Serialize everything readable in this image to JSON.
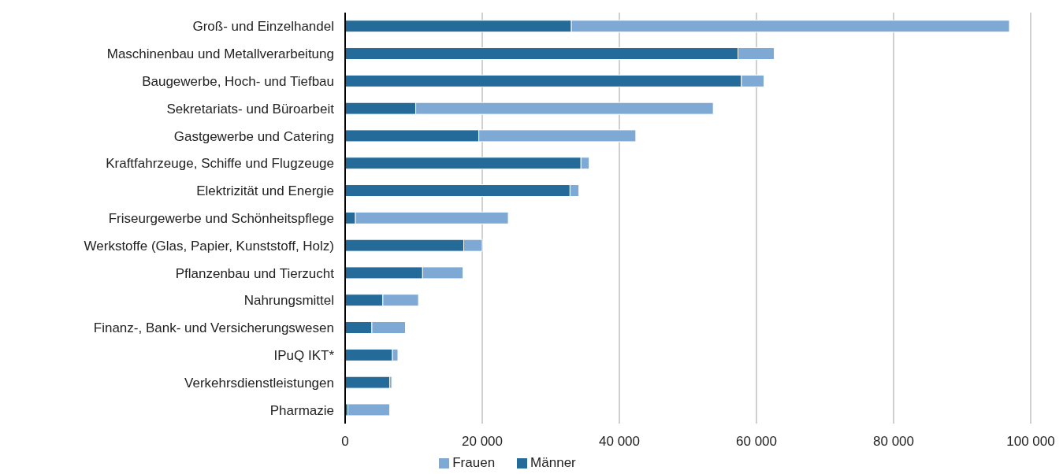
{
  "chart_data": {
    "type": "bar",
    "orientation": "horizontal",
    "stacked": true,
    "categories": [
      "Groß- und Einzelhandel",
      "Maschinenbau und Metallverarbeitung",
      "Baugewerbe, Hoch- und Tiefbau",
      "Sekretariats- und Büroarbeit",
      "Gastgewerbe und Catering",
      "Kraftfahrzeuge, Schiffe und Flugzeuge",
      "Elektrizität und Energie",
      "Friseurgewerbe und Schönheitspflege",
      "Werkstoffe (Glas, Papier, Kunststoff, Holz)",
      "Pflanzenbau und Tierzucht",
      "Nahrungsmittel",
      "Finanz-, Bank- und Versicherungswesen",
      "IPuQ IKT*",
      "Verkehrsdienstleistungen",
      "Pharmazie"
    ],
    "series": [
      {
        "name": "Männer",
        "color": "#246b99",
        "values": [
          33000,
          57300,
          57800,
          10300,
          19500,
          34400,
          32800,
          1500,
          17300,
          11300,
          5500,
          3900,
          6900,
          6500,
          400
        ]
      },
      {
        "name": "Frauen",
        "color": "#7fa9d5",
        "values": [
          63900,
          5300,
          3300,
          43400,
          22900,
          1200,
          1300,
          22300,
          2700,
          5900,
          5200,
          4900,
          800,
          300,
          6100
        ]
      }
    ],
    "xlim": [
      0,
      100000
    ],
    "xticks": [
      {
        "value": 0,
        "label": "0"
      },
      {
        "value": 20000,
        "label": "20 000"
      },
      {
        "value": 40000,
        "label": "40 000"
      },
      {
        "value": 60000,
        "label": "60 000"
      },
      {
        "value": 80000,
        "label": "80 000"
      },
      {
        "value": 100000,
        "label": "100 000"
      }
    ],
    "grid": "x",
    "legend": "bottom"
  }
}
